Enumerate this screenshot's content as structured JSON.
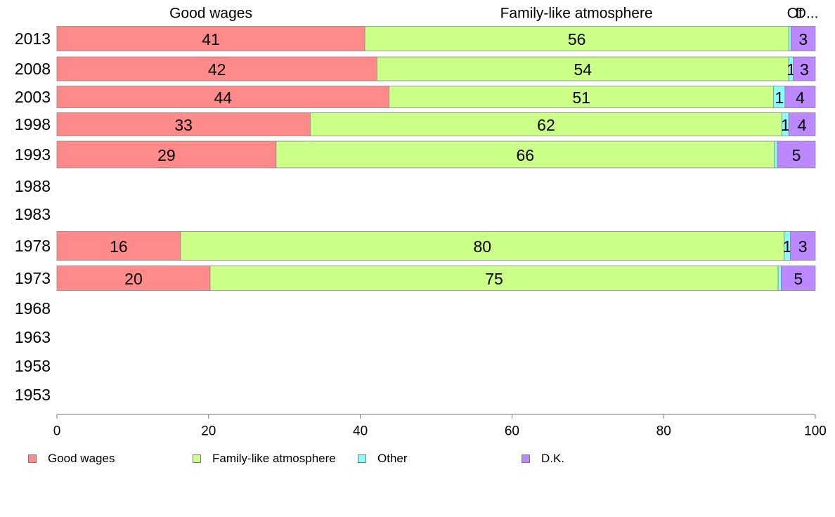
{
  "chart_data": {
    "type": "bar",
    "orientation": "horizontal",
    "stacked": true,
    "categories": [
      "2013",
      "2008",
      "2003",
      "1998",
      "1993",
      "1988",
      "1983",
      "1978",
      "1973",
      "1968",
      "1963",
      "1958",
      "1953"
    ],
    "series": [
      {
        "name": "Good wages",
        "color": "#FF8A8A",
        "values": [
          40.6,
          42.2,
          43.8,
          33.4,
          28.9,
          null,
          null,
          16.3,
          20.2,
          null,
          null,
          null,
          null
        ],
        "labels": [
          "41",
          "42",
          "44",
          "33",
          "29",
          "",
          "",
          "16",
          "20",
          "",
          "",
          "",
          ""
        ]
      },
      {
        "name": "Family-like atmosphere",
        "color": "#CCFF88",
        "values": [
          55.9,
          54.3,
          50.7,
          62.2,
          65.7,
          null,
          null,
          79.6,
          74.9,
          null,
          null,
          null,
          null
        ],
        "labels": [
          "56",
          "54",
          "51",
          "62",
          "66",
          "",
          "",
          "80",
          "75",
          "",
          "",
          "",
          ""
        ]
      },
      {
        "name": "Other",
        "color": "#88FFFF",
        "values": [
          0.3,
          0.6,
          1.5,
          0.9,
          0.4,
          null,
          null,
          0.8,
          0.4,
          null,
          null,
          null,
          null
        ],
        "labels": [
          "",
          "1",
          "1",
          "1",
          "",
          "",
          "",
          "1",
          "",
          "",
          "",
          "",
          ""
        ]
      },
      {
        "name": "D.K.",
        "color": "#BB88FF",
        "values": [
          3.2,
          2.9,
          4.0,
          3.5,
          5.0,
          null,
          null,
          3.3,
          4.5,
          null,
          null,
          null,
          null
        ],
        "labels": [
          "3",
          "3",
          "4",
          "4",
          "5",
          "",
          "",
          "3",
          "5",
          "",
          "",
          "",
          ""
        ]
      }
    ],
    "top_labels": [
      {
        "text": "Good wages",
        "x": 20.3
      },
      {
        "text": "Family-like atmosphere",
        "x": 68.5
      },
      {
        "text": "Ot",
        "x": 97.3
      },
      {
        "text": "D...",
        "x": 98.9
      }
    ],
    "x_ticks": [
      "0",
      "20",
      "40",
      "60",
      "80",
      "100"
    ],
    "xlim": [
      0,
      100
    ],
    "grid": false,
    "legend_position": "bottom"
  }
}
